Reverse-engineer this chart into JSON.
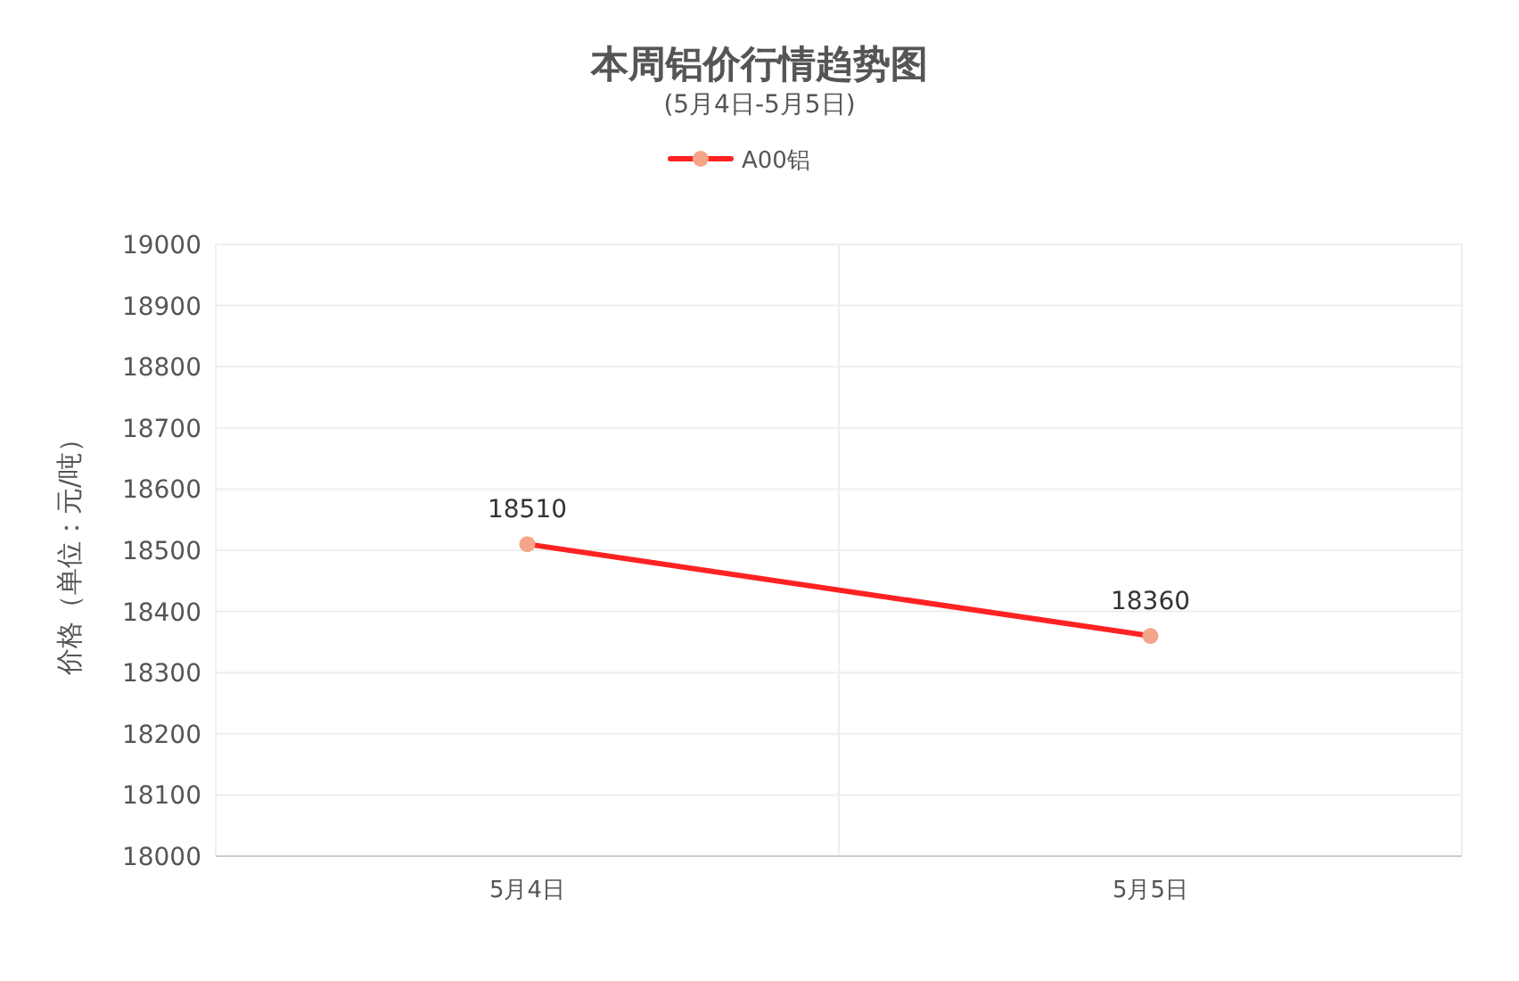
{
  "chart_data": {
    "type": "line",
    "title": "本周铝价行情趋势图",
    "subtitle": "(5月4日-5月5日)",
    "ylabel": "价格（单位：元/吨）",
    "categories": [
      "5月4日",
      "5月5日"
    ],
    "series": [
      {
        "name": "A00铝",
        "color": "#ff2222",
        "values": [
          18510,
          18360
        ]
      }
    ],
    "ylim": [
      18000,
      19000
    ],
    "yticks": [
      18000,
      18100,
      18200,
      18300,
      18400,
      18500,
      18600,
      18700,
      18800,
      18900,
      19000
    ],
    "grid": true,
    "legend": "top",
    "marker": "circle",
    "line_style": "solid",
    "data_labels": true
  }
}
